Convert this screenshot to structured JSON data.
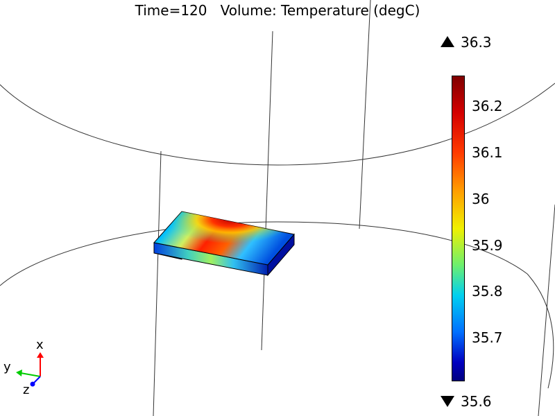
{
  "plot": {
    "title": "Time=120   Volume: Temperature (degC)"
  },
  "colorbar": {
    "max_label": "36.3",
    "min_label": "35.6",
    "max_value": 36.3,
    "min_value": 35.6,
    "ticks": [
      "36.2",
      "36.1",
      "36",
      "35.9",
      "35.8",
      "35.7"
    ],
    "colormap": "rainbow"
  },
  "triad": {
    "x_label": "x",
    "y_label": "y",
    "z_label": "z",
    "x_color": "#ff0000",
    "y_color": "#00cc00",
    "z_color": "#0000ff"
  }
}
